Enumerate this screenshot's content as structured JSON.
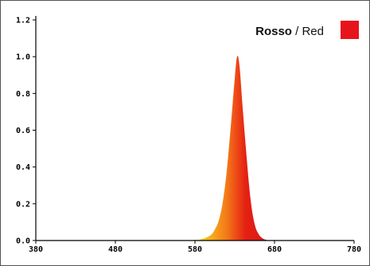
{
  "chart_data": {
    "type": "area",
    "title": "",
    "xlabel": "",
    "ylabel": "",
    "xlim": [
      380,
      780
    ],
    "ylim": [
      0,
      1.2
    ],
    "x_ticks": [
      "380",
      "480",
      "580",
      "680",
      "780"
    ],
    "y_ticks": [
      "0.0",
      "0.2",
      "0.4",
      "0.6",
      "0.8",
      "1.0",
      "1.2"
    ],
    "grid": false,
    "legend_position": "top-right",
    "legend": {
      "bold_label": "Rosso",
      "separator": " / ",
      "label": "Red",
      "swatch_color": "#e8141c"
    },
    "series": [
      {
        "name": "Rosso / Red",
        "x": [
          380,
          480,
          560,
          580,
          590,
          600,
          605,
          610,
          615,
          620,
          625,
          630,
          633,
          636,
          640,
          645,
          650,
          655,
          660,
          665,
          670,
          680,
          780
        ],
        "values": [
          0.0,
          0.0,
          0.0,
          0.003,
          0.01,
          0.03,
          0.06,
          0.11,
          0.21,
          0.38,
          0.62,
          0.88,
          1.0,
          0.95,
          0.72,
          0.45,
          0.22,
          0.09,
          0.035,
          0.012,
          0.004,
          0.001,
          0.0
        ]
      }
    ]
  }
}
